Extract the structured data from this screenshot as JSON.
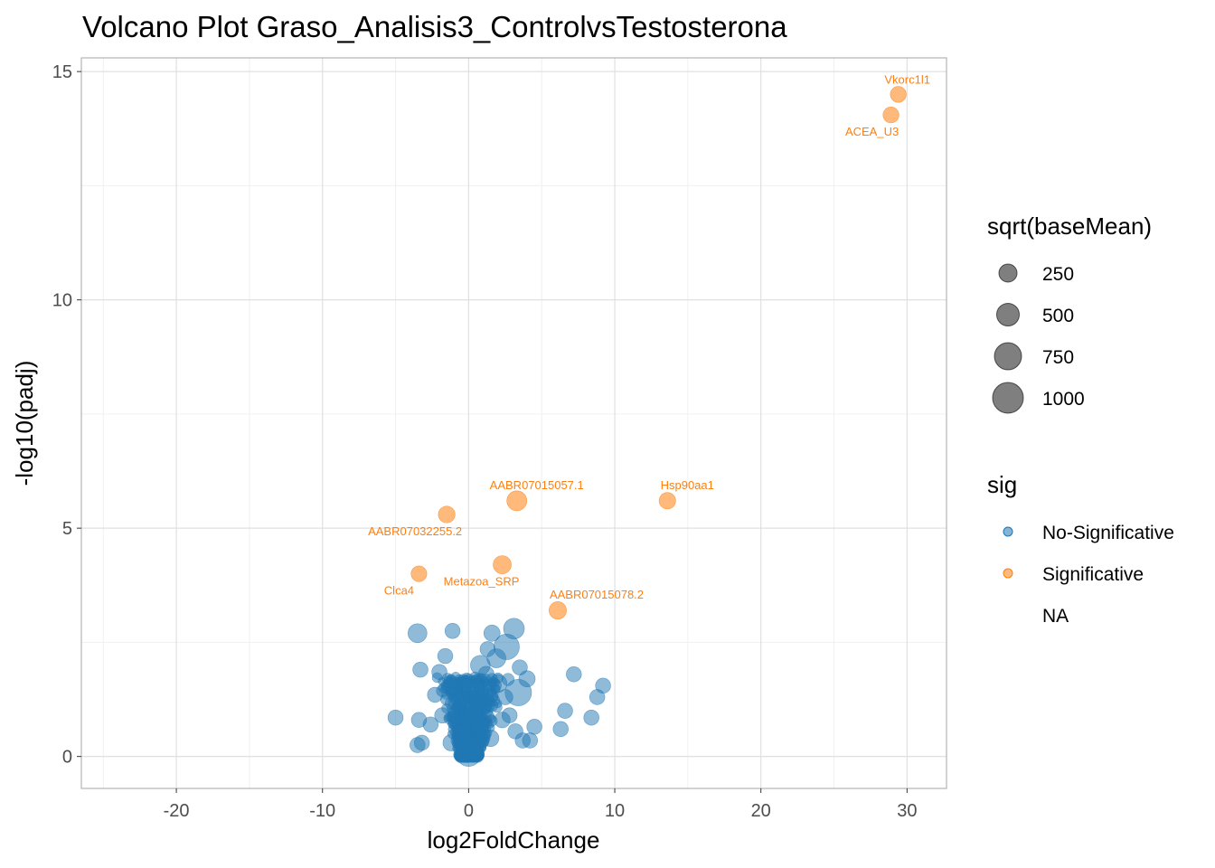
{
  "chart_data": {
    "type": "scatter",
    "title": "Volcano Plot Graso_Analisis3_ControlvsTestosterona",
    "xlabel": "log2FoldChange",
    "ylabel": "-log10(padj)",
    "xlim": [
      -26.5,
      32.7
    ],
    "ylim": [
      -0.7,
      15.3
    ],
    "x_ticks": [
      -20,
      -10,
      0,
      10,
      20,
      30
    ],
    "x_tick_labels": [
      "-20",
      "-10",
      "0",
      "10",
      "20",
      "30"
    ],
    "y_ticks": [
      0,
      5,
      10,
      15
    ],
    "y_tick_labels": [
      "0",
      "5",
      "10",
      "15"
    ],
    "grid": true,
    "colors": {
      "No-Significative": "#1f77b4",
      "Significative": "#ff7f0e"
    },
    "legend_size": {
      "title": "sqrt(baseMean)",
      "entries": [
        {
          "label": "250",
          "value": 250
        },
        {
          "label": "500",
          "value": 500
        },
        {
          "label": "750",
          "value": 750
        },
        {
          "label": "1000",
          "value": 1000
        }
      ]
    },
    "legend_sig": {
      "title": "sig",
      "entries": [
        {
          "label": "No-Significative",
          "color": "#1f77b4"
        },
        {
          "label": "Significative",
          "color": "#ff7f0e"
        },
        {
          "label": "NA",
          "color": null
        }
      ]
    },
    "series": [
      {
        "name": "Significative",
        "points": [
          {
            "x": 29.4,
            "y": 14.5,
            "size": 180,
            "label": "Vkorc1l1"
          },
          {
            "x": 28.9,
            "y": 14.05,
            "size": 180,
            "label": "ACEA_U3"
          },
          {
            "x": 3.3,
            "y": 5.6,
            "size": 420,
            "label": "AABR07015057.1"
          },
          {
            "x": 13.6,
            "y": 5.6,
            "size": 210,
            "label": "Hsp90aa1"
          },
          {
            "x": -1.5,
            "y": 5.3,
            "size": 220,
            "label": "AABR07032255.2"
          },
          {
            "x": 2.3,
            "y": 4.2,
            "size": 300,
            "label": "Metazoa_SRP"
          },
          {
            "x": -3.4,
            "y": 4.0,
            "size": 170,
            "label": "Clca4"
          },
          {
            "x": 6.1,
            "y": 3.2,
            "size": 260,
            "label": "AABR07015078.2"
          }
        ]
      },
      {
        "name": "No-Significative",
        "points": [
          {
            "x": -3.5,
            "y": 2.7,
            "size": 350
          },
          {
            "x": -1.1,
            "y": 2.75,
            "size": 150
          },
          {
            "x": 3.1,
            "y": 2.8,
            "size": 480
          },
          {
            "x": 1.6,
            "y": 2.7,
            "size": 200
          },
          {
            "x": 2.6,
            "y": 2.4,
            "size": 900
          },
          {
            "x": 1.9,
            "y": 2.15,
            "size": 350
          },
          {
            "x": -1.6,
            "y": 2.2,
            "size": 150
          },
          {
            "x": -3.3,
            "y": 1.9,
            "size": 150
          },
          {
            "x": -2.0,
            "y": 1.85,
            "size": 150
          },
          {
            "x": 3.4,
            "y": 1.4,
            "size": 1000
          },
          {
            "x": 7.2,
            "y": 1.8,
            "size": 150
          },
          {
            "x": 9.2,
            "y": 1.55,
            "size": 150
          },
          {
            "x": 8.8,
            "y": 1.3,
            "size": 150
          },
          {
            "x": 6.6,
            "y": 1.0,
            "size": 150
          },
          {
            "x": 8.4,
            "y": 0.85,
            "size": 150
          },
          {
            "x": 6.3,
            "y": 0.6,
            "size": 150
          },
          {
            "x": -5.0,
            "y": 0.85,
            "size": 150
          },
          {
            "x": -3.4,
            "y": 0.8,
            "size": 150
          },
          {
            "x": -3.2,
            "y": 0.3,
            "size": 150
          },
          {
            "x": -3.5,
            "y": 0.25,
            "size": 150
          },
          {
            "x": 4.5,
            "y": 0.65,
            "size": 150
          },
          {
            "x": 3.2,
            "y": 0.55,
            "size": 150
          },
          {
            "x": 3.7,
            "y": 0.35,
            "size": 150
          },
          {
            "x": 4.2,
            "y": 0.35,
            "size": 150
          },
          {
            "x": -2.3,
            "y": 1.35,
            "size": 150
          },
          {
            "x": -2.6,
            "y": 0.7,
            "size": 150
          },
          {
            "x": 2.8,
            "y": 0.9,
            "size": 150
          },
          {
            "x": 1.3,
            "y": 2.35,
            "size": 150
          },
          {
            "x": 4.0,
            "y": 1.7,
            "size": 200
          },
          {
            "x": 3.5,
            "y": 1.95,
            "size": 150
          },
          {
            "x": 0.8,
            "y": 2.0,
            "size": 400
          },
          {
            "x": 2.0,
            "y": 1.6,
            "size": 300
          },
          {
            "x": 0.0,
            "y": 0.05,
            "size": 800
          },
          {
            "x": 0.2,
            "y": 0.15,
            "size": 500
          },
          {
            "x": -0.8,
            "y": 1.2,
            "size": 250
          },
          {
            "x": 0.5,
            "y": 1.5,
            "size": 220
          },
          {
            "x": 1.0,
            "y": 1.1,
            "size": 220
          },
          {
            "x": -0.5,
            "y": 0.5,
            "size": 300
          },
          {
            "x": 1.5,
            "y": 0.4,
            "size": 220
          },
          {
            "x": -1.2,
            "y": 0.3,
            "size": 200
          },
          {
            "x": 0.8,
            "y": 0.7,
            "size": 260
          },
          {
            "x": -0.3,
            "y": 1.6,
            "size": 180
          },
          {
            "x": 1.2,
            "y": 1.8,
            "size": 180
          },
          {
            "x": 2.3,
            "y": 0.8,
            "size": 180
          },
          {
            "x": -1.8,
            "y": 0.9,
            "size": 160
          },
          {
            "x": 2.5,
            "y": 1.3,
            "size": 160
          },
          {
            "x": -1.0,
            "y": 1.5,
            "size": 160
          },
          {
            "x": 0.3,
            "y": 1.0,
            "size": 300
          }
        ]
      }
    ]
  }
}
